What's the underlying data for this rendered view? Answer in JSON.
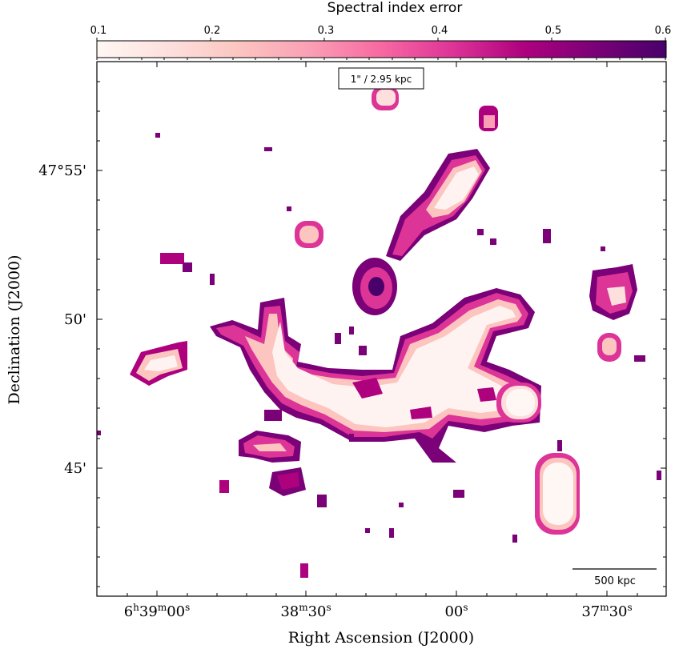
{
  "colorbar": {
    "label": "Spectral index error",
    "min": 0.1,
    "max": 0.6,
    "ticks": [
      "0.1",
      "0.2",
      "0.3",
      "0.4",
      "0.5",
      "0.6"
    ],
    "colormap": "RdPu",
    "colors": [
      "#fff7f3",
      "#fde0dd",
      "#fcc5c0",
      "#fa9fb5",
      "#f768a1",
      "#dd3497",
      "#ae017e",
      "#7a0177",
      "#49006a"
    ]
  },
  "annotations": {
    "beam_label": "1\" / 2.95 kpc",
    "scalebar_label": "500 kpc"
  },
  "axes": {
    "xlabel": "Right Ascension (J2000)",
    "ylabel": "Declination (J2000)",
    "xticks": [
      {
        "h": "6",
        "hs": "h",
        "m": "39",
        "ms": "m",
        "s": "00",
        "ss": "s"
      },
      {
        "h": "",
        "hs": "",
        "m": "38",
        "ms": "m",
        "s": "30",
        "ss": "s"
      },
      {
        "h": "",
        "hs": "",
        "m": "",
        "ms": "",
        "s": "00",
        "ss": "s"
      },
      {
        "h": "",
        "hs": "",
        "m": "37",
        "ms": "m",
        "s": "30",
        "ss": "s"
      }
    ],
    "yticks": [
      "47°55'",
      "50'",
      "45'"
    ]
  },
  "chart_data": {
    "type": "heatmap",
    "title": "",
    "xlabel": "Right Ascension (J2000)",
    "ylabel": "Declination (J2000)",
    "colorbar_label": "Spectral index error",
    "colorbar_range": [
      0.1,
      0.6
    ],
    "x_tick_labels": [
      "6h39m00s",
      "38m30s",
      "00s",
      "37m30s"
    ],
    "y_tick_labels": [
      "47°55'",
      "50'",
      "45'"
    ]
  }
}
